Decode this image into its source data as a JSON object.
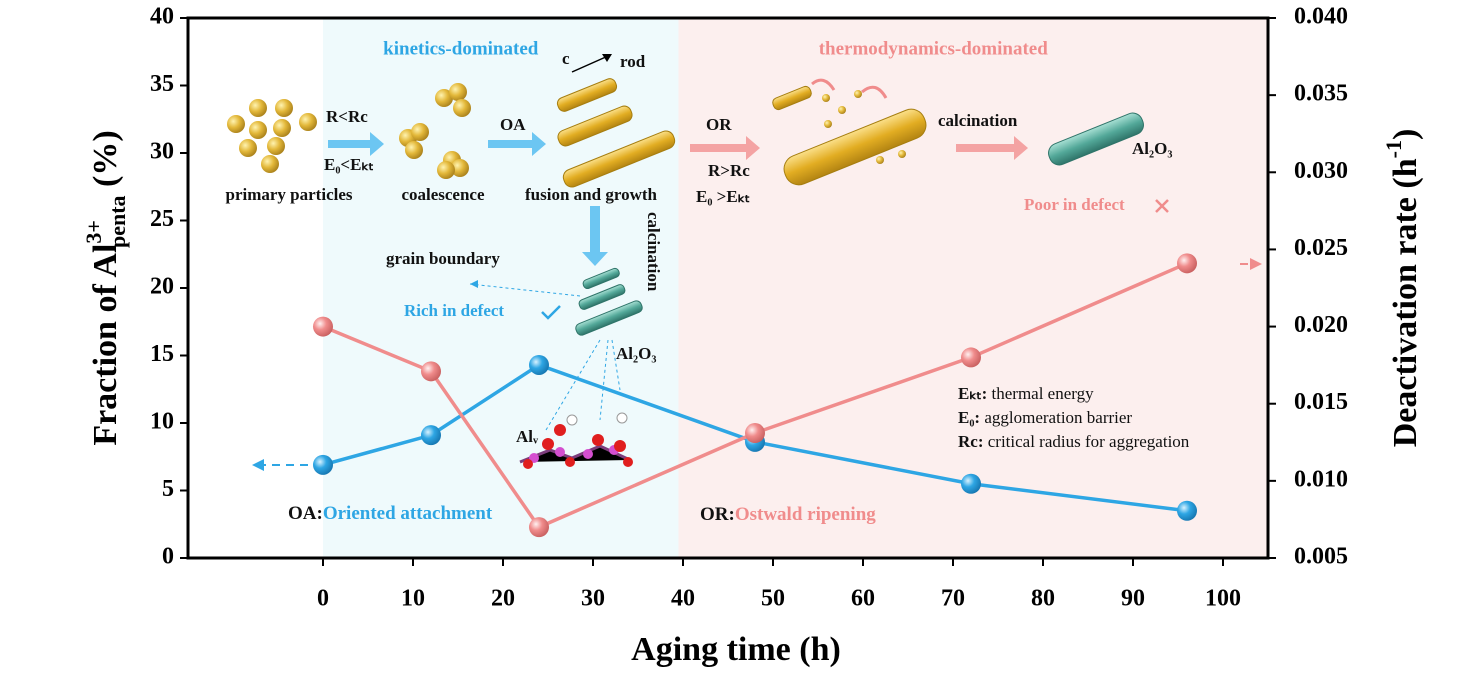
{
  "chart_data": {
    "type": "line",
    "x_label": "Aging time (h)",
    "y_label": [
      "Fraction of Al",
      "3+",
      "penta",
      " (%)"
    ],
    "y2_label": [
      "Deactivation rate (h",
      "-1",
      ")"
    ],
    "x": [
      0,
      12,
      24,
      48,
      72,
      96
    ],
    "xlim": [
      -15,
      105
    ],
    "xticks": [
      0,
      10,
      20,
      30,
      40,
      50,
      60,
      70,
      80,
      90,
      100
    ],
    "ylim": [
      0,
      40
    ],
    "yticks": [
      0,
      5,
      10,
      15,
      20,
      25,
      30,
      35,
      40
    ],
    "y2lim": [
      0.005,
      0.04
    ],
    "y2ticks": [
      0.005,
      {
        "value": 0.01,
        "label": "0.010"
      },
      0.015,
      {
        "value": 0.02,
        "label": "0.020"
      },
      0.025,
      {
        "value": 0.03,
        "label": "0.030"
      },
      0.035,
      {
        "value": 0.04,
        "label": "0.040"
      }
    ],
    "series": [
      {
        "color": "#2ea6e4",
        "values": [
          6.9,
          9.1,
          14.3,
          8.6,
          5.5,
          3.5
        ]
      },
      {
        "color": "#f08c8c",
        "axis": "y2",
        "values": [
          0.02,
          0.0171,
          0.007,
          0.0131,
          0.018,
          0.0241
        ]
      }
    ],
    "regions": [
      {
        "name": "kinetics-dominated",
        "xlim": [
          0,
          39.5
        ],
        "color": "#effafc"
      },
      {
        "name": "thermodynamics-dominated",
        "xlim": [
          39.5,
          105
        ],
        "color": "#fcefee"
      }
    ],
    "annotations": [
      "R<Rc",
      "E₀<Eₖₜ",
      "primary particles",
      "coalescence",
      "OA",
      "c",
      "rod",
      "fusion and growth",
      "OR",
      "R>Rc",
      "E₀ >Eₖₜ",
      "calcination",
      "Al₂O₃",
      "Poor in defect",
      "calcination",
      "grain boundary",
      "Rich in defect",
      "Al₂O₃",
      "Alᵥ"
    ],
    "notes": [
      {
        "term": "Eₖₜ:",
        "text": " thermal energy"
      },
      {
        "term": "E₀:",
        "text": " agglomeration barrier"
      },
      {
        "term": "Rc:",
        "text": " critical radius for aggregation"
      }
    ],
    "definitions": [
      {
        "term": "OA:",
        "text": "Oriented attachment"
      },
      {
        "term": "OR:",
        "text": "Ostwald ripening"
      }
    ]
  }
}
